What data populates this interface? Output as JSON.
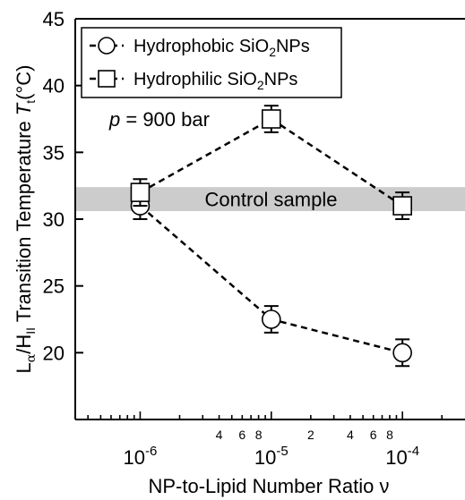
{
  "chart_data": {
    "type": "scatter",
    "x_scale": "log",
    "xlim": [
      3.2e-07,
      0.0003
    ],
    "ylim": [
      15,
      45
    ],
    "y_ticks": [
      20,
      25,
      30,
      35,
      40,
      45
    ],
    "y_tick_labels": [
      "20",
      "25",
      "30",
      "35",
      "40",
      "45"
    ],
    "x_major_ticks": [
      1e-06,
      1e-05,
      0.0001
    ],
    "x_major_labels": [
      {
        "base": "10",
        "exp": "-6"
      },
      {
        "base": "10",
        "exp": "-5"
      },
      {
        "base": "10",
        "exp": "-4"
      }
    ],
    "x_minor_labels": [
      {
        "value": 4e-06,
        "label": "4"
      },
      {
        "value": 6e-06,
        "label": "6"
      },
      {
        "value": 8e-06,
        "label": "8"
      },
      {
        "value": 2e-05,
        "label": "2"
      },
      {
        "value": 4e-05,
        "label": "4"
      },
      {
        "value": 6e-05,
        "label": "6"
      },
      {
        "value": 8e-05,
        "label": "8"
      }
    ],
    "xlabel": "NP-to-Lipid Number Ratio ν",
    "ylabel": {
      "p1": "L",
      "p1_sub": "α",
      "p2": "/H",
      "p2_sub": "II",
      "p3": " Transition Temperature ",
      "p4": "T",
      "p4_sub": "t",
      "p5": "(°C)"
    },
    "series": [
      {
        "name": {
          "prefix": "Hydrophobic SiO",
          "sub": "2",
          "suffix": "NPs"
        },
        "marker": "circle",
        "x": [
          1e-06,
          1e-05,
          0.0001
        ],
        "y": [
          31.0,
          22.5,
          20.0
        ],
        "yerr": [
          1.0,
          1.0,
          1.0
        ]
      },
      {
        "name": {
          "prefix": "Hydrophilic SiO",
          "sub": "2",
          "suffix": "NPs"
        },
        "marker": "square",
        "x": [
          1e-06,
          1e-05,
          0.0001
        ],
        "y": [
          32.0,
          37.5,
          31.0
        ],
        "yerr": [
          1.0,
          1.0,
          1.0
        ]
      }
    ],
    "control_band": {
      "label": "Control sample",
      "ymin": 30.6,
      "ymax": 32.4
    },
    "annotation": {
      "italic": "p",
      "text": " = 900 bar"
    },
    "legend_position": "top-left",
    "grid": false
  }
}
